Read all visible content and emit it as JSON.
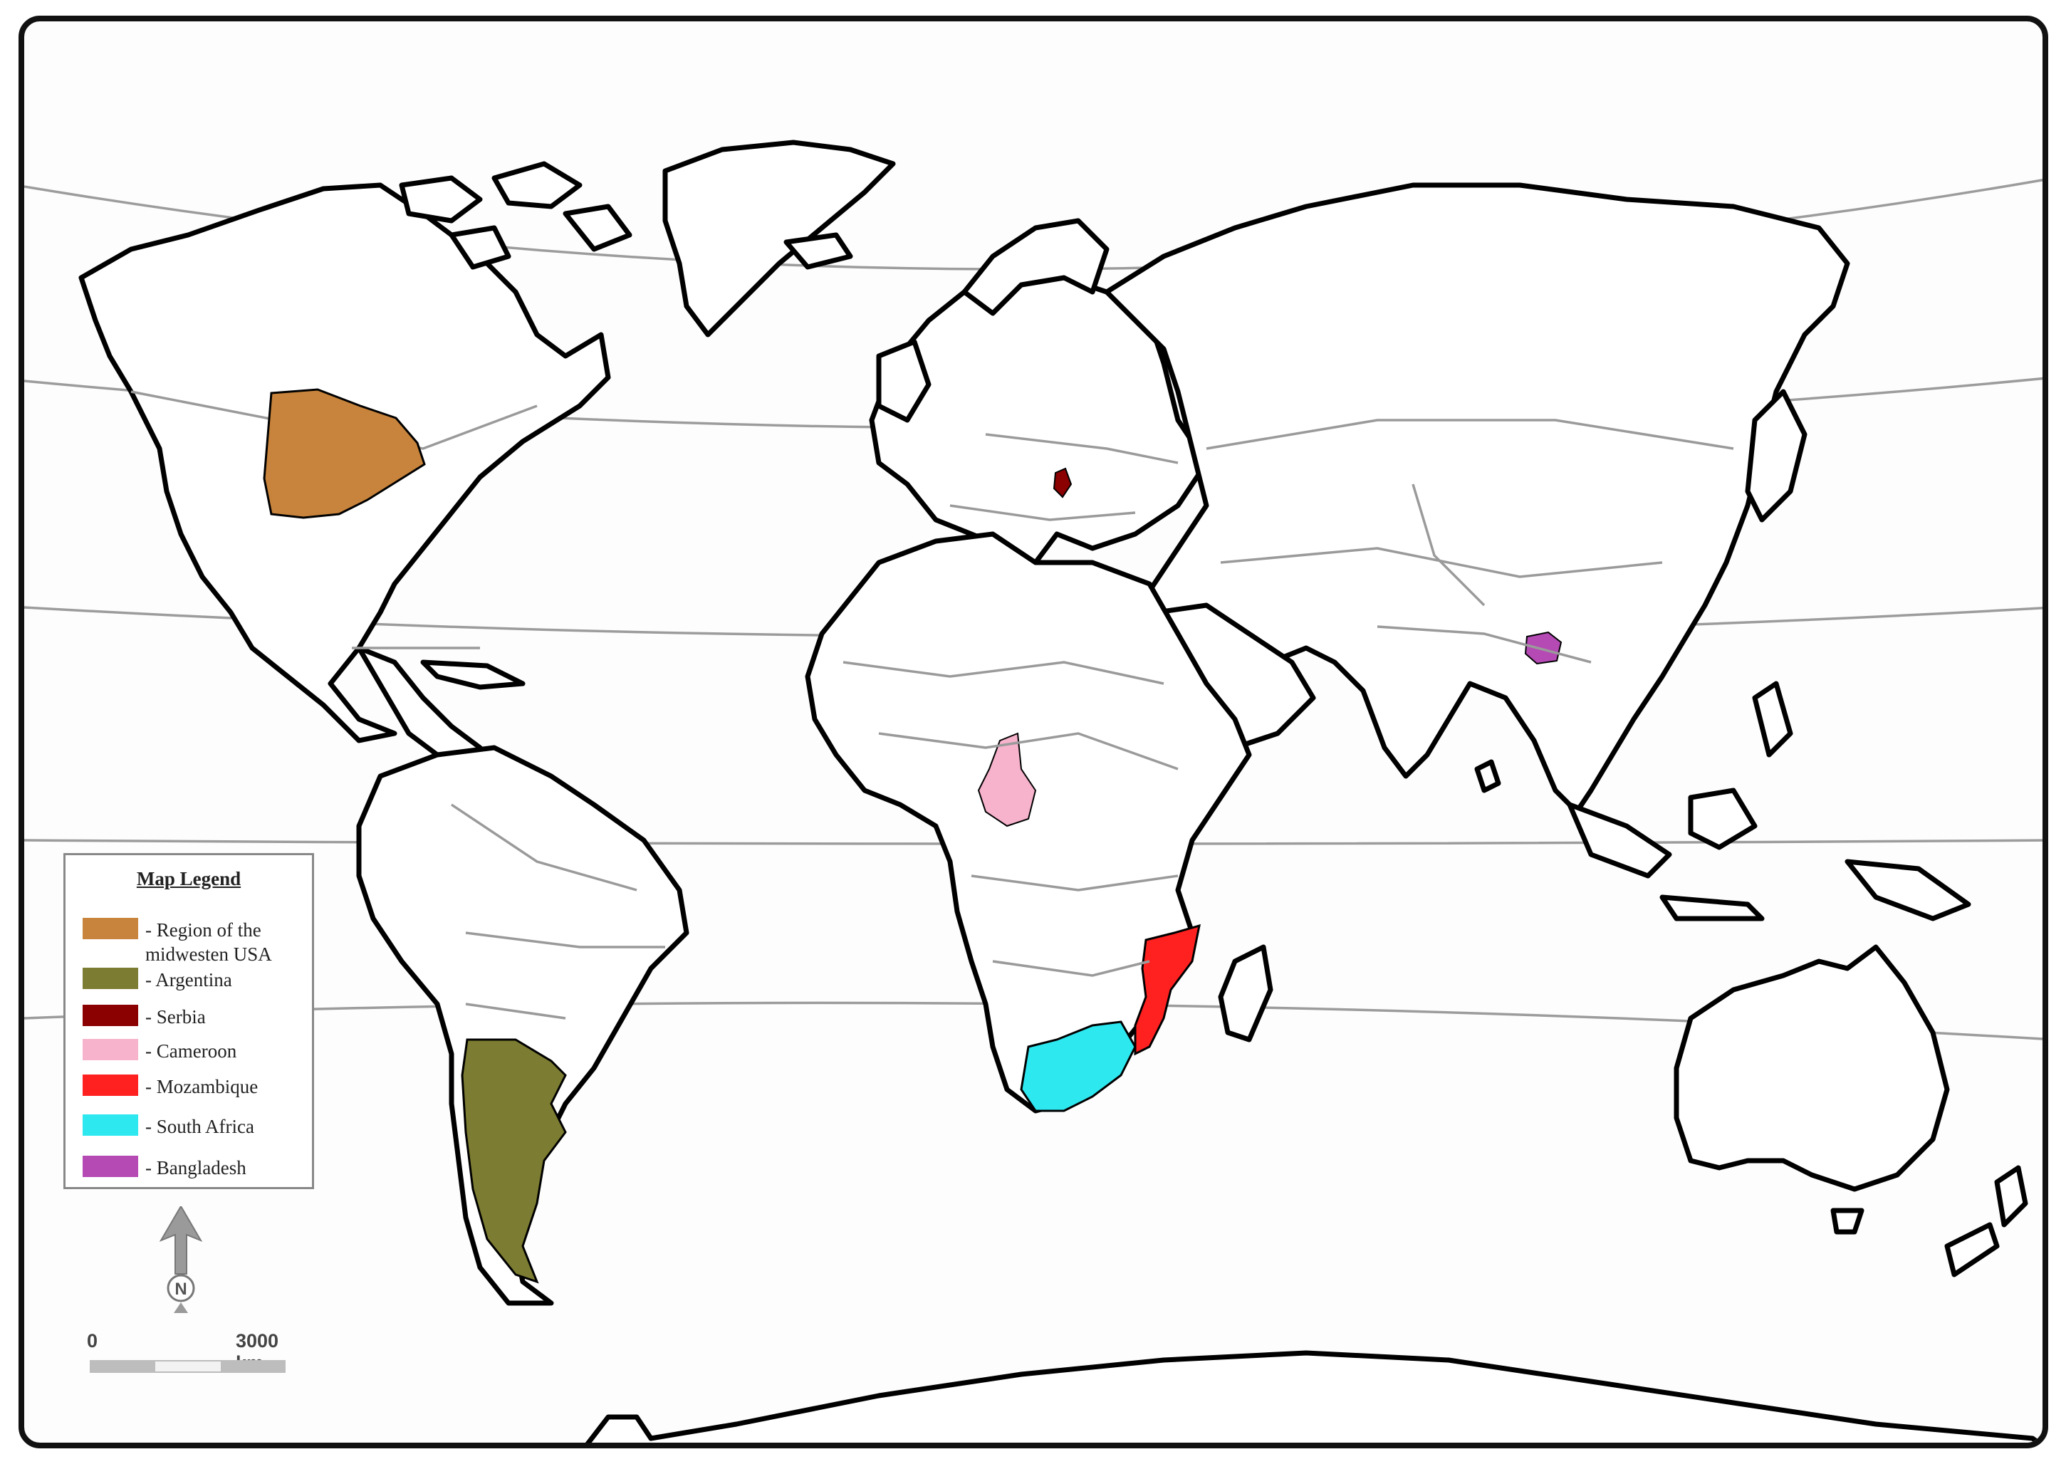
{
  "legend": {
    "title": "Map Legend",
    "items": [
      {
        "label": "Region of the midwesten USA",
        "color": "#c8843c"
      },
      {
        "label": "Argentina",
        "color": "#7c7c32"
      },
      {
        "label": "Serbia",
        "color": "#8b0000"
      },
      {
        "label": "Cameroon",
        "color": "#f7b2cc"
      },
      {
        "label": "Mozambique",
        "color": "#ff2020"
      },
      {
        "label": "South Africa",
        "color": "#2ee8f0"
      },
      {
        "label": "Bangladesh",
        "color": "#b54ab5"
      }
    ]
  },
  "compass": {
    "letter": "N",
    "icon": "north-arrow-icon"
  },
  "scale": {
    "start": "0",
    "end": "3000 km"
  },
  "colors": {
    "land": "#ffffff",
    "coast": "#000000",
    "borders": "#9a9a9a",
    "graticule": "#9c9c9c"
  }
}
